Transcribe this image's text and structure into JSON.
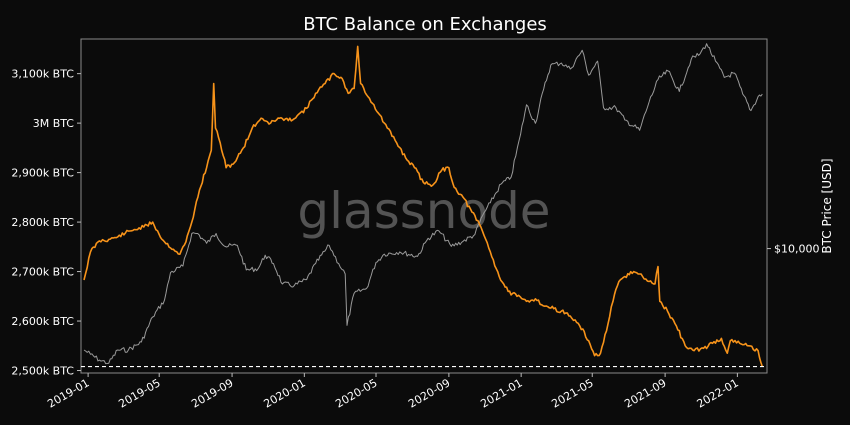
{
  "chart_data": {
    "type": "line",
    "title": "BTC Balance on Exchanges",
    "watermark": "glassnode",
    "ylabel_right": "BTC Price [USD]",
    "x_range": [
      "2018-12-20",
      "2022-02-20"
    ],
    "y_left_range": [
      2495,
      3170
    ],
    "y_right_scale": "log",
    "y_right_range": [
      3150,
      70000
    ],
    "x_ticks": [
      {
        "date": "2019-01-01",
        "label": "2019-01"
      },
      {
        "date": "2019-05-01",
        "label": "2019-05"
      },
      {
        "date": "2019-09-01",
        "label": "2019-09"
      },
      {
        "date": "2020-01-01",
        "label": "2020-01"
      },
      {
        "date": "2020-05-01",
        "label": "2020-05"
      },
      {
        "date": "2020-09-01",
        "label": "2020-09"
      },
      {
        "date": "2021-01-01",
        "label": "2021-01"
      },
      {
        "date": "2021-05-01",
        "label": "2021-05"
      },
      {
        "date": "2021-09-01",
        "label": "2021-09"
      },
      {
        "date": "2022-01-01",
        "label": "2022-01"
      }
    ],
    "y_left_ticks": [
      {
        "value": 2500,
        "label": "2,500k BTC"
      },
      {
        "value": 2600,
        "label": "2,600k BTC"
      },
      {
        "value": 2700,
        "label": "2,700k BTC"
      },
      {
        "value": 2800,
        "label": "2,800k BTC"
      },
      {
        "value": 2900,
        "label": "2,900k BTC"
      },
      {
        "value": 3000,
        "label": "3M BTC"
      },
      {
        "value": 3100,
        "label": "3,100k BTC"
      }
    ],
    "y_right_ticks": [
      {
        "value": 10000,
        "label": "$10,000"
      }
    ],
    "reference_line": {
      "value": 2508,
      "style": "dashed",
      "color": "#ffffff"
    },
    "grid": false,
    "series": [
      {
        "color": "#f7931a",
        "axis": "left",
        "unit": "k BTC",
        "points": [
          [
            "2018-12-25",
            2683
          ],
          [
            "2019-01-05",
            2740
          ],
          [
            "2019-01-20",
            2762
          ],
          [
            "2019-02-05",
            2765
          ],
          [
            "2019-02-20",
            2770
          ],
          [
            "2019-03-05",
            2778
          ],
          [
            "2019-03-20",
            2785
          ],
          [
            "2019-04-05",
            2790
          ],
          [
            "2019-04-20",
            2800
          ],
          [
            "2019-05-01",
            2775
          ],
          [
            "2019-05-10",
            2760
          ],
          [
            "2019-05-25",
            2745
          ],
          [
            "2019-06-05",
            2735
          ],
          [
            "2019-06-15",
            2760
          ],
          [
            "2019-06-25",
            2800
          ],
          [
            "2019-07-08",
            2865
          ],
          [
            "2019-07-20",
            2910
          ],
          [
            "2019-07-28",
            2945
          ],
          [
            "2019-08-01",
            3080
          ],
          [
            "2019-08-04",
            2990
          ],
          [
            "2019-08-12",
            2960
          ],
          [
            "2019-08-22",
            2910
          ],
          [
            "2019-09-05",
            2920
          ],
          [
            "2019-09-20",
            2950
          ],
          [
            "2019-10-05",
            2990
          ],
          [
            "2019-10-20",
            3010
          ],
          [
            "2019-11-05",
            3000
          ],
          [
            "2019-11-20",
            3010
          ],
          [
            "2019-12-05",
            3005
          ],
          [
            "2019-12-20",
            3015
          ],
          [
            "2020-01-05",
            3030
          ],
          [
            "2020-01-20",
            3060
          ],
          [
            "2020-02-05",
            3080
          ],
          [
            "2020-02-20",
            3100
          ],
          [
            "2020-03-05",
            3090
          ],
          [
            "2020-03-15",
            3060
          ],
          [
            "2020-03-25",
            3070
          ],
          [
            "2020-03-31",
            3155
          ],
          [
            "2020-04-05",
            3080
          ],
          [
            "2020-04-20",
            3050
          ],
          [
            "2020-05-05",
            3020
          ],
          [
            "2020-05-20",
            2990
          ],
          [
            "2020-06-05",
            2960
          ],
          [
            "2020-06-20",
            2930
          ],
          [
            "2020-07-05",
            2910
          ],
          [
            "2020-07-20",
            2880
          ],
          [
            "2020-08-05",
            2875
          ],
          [
            "2020-08-20",
            2905
          ],
          [
            "2020-09-01",
            2910
          ],
          [
            "2020-09-10",
            2870
          ],
          [
            "2020-09-25",
            2850
          ],
          [
            "2020-10-10",
            2820
          ],
          [
            "2020-10-25",
            2790
          ],
          [
            "2020-11-10",
            2740
          ],
          [
            "2020-11-25",
            2690
          ],
          [
            "2020-12-10",
            2660
          ],
          [
            "2020-12-25",
            2650
          ],
          [
            "2021-01-10",
            2640
          ],
          [
            "2021-01-25",
            2645
          ],
          [
            "2021-02-10",
            2630
          ],
          [
            "2021-02-25",
            2625
          ],
          [
            "2021-03-10",
            2620
          ],
          [
            "2021-03-25",
            2610
          ],
          [
            "2021-04-10",
            2590
          ],
          [
            "2021-04-25",
            2560
          ],
          [
            "2021-05-05",
            2530
          ],
          [
            "2021-05-15",
            2535
          ],
          [
            "2021-05-25",
            2580
          ],
          [
            "2021-06-05",
            2640
          ],
          [
            "2021-06-15",
            2680
          ],
          [
            "2021-06-25",
            2690
          ],
          [
            "2021-07-10",
            2700
          ],
          [
            "2021-07-25",
            2690
          ],
          [
            "2021-08-05",
            2680
          ],
          [
            "2021-08-15",
            2675
          ],
          [
            "2021-08-20",
            2710
          ],
          [
            "2021-08-23",
            2640
          ],
          [
            "2021-09-05",
            2620
          ],
          [
            "2021-09-20",
            2590
          ],
          [
            "2021-10-05",
            2550
          ],
          [
            "2021-10-20",
            2540
          ],
          [
            "2021-11-05",
            2545
          ],
          [
            "2021-11-20",
            2555
          ],
          [
            "2021-12-05",
            2565
          ],
          [
            "2021-12-15",
            2535
          ],
          [
            "2021-12-20",
            2560
          ],
          [
            "2022-01-05",
            2555
          ],
          [
            "2022-01-20",
            2550
          ],
          [
            "2022-02-05",
            2540
          ],
          [
            "2022-02-12",
            2508
          ]
        ]
      },
      {
        "color": "#9a9a9a",
        "axis": "right",
        "unit": "USD",
        "points": [
          [
            "2018-12-25",
            3900
          ],
          [
            "2019-01-05",
            3750
          ],
          [
            "2019-01-20",
            3550
          ],
          [
            "2019-02-05",
            3450
          ],
          [
            "2019-02-20",
            3900
          ],
          [
            "2019-03-10",
            3900
          ],
          [
            "2019-04-01",
            4200
          ],
          [
            "2019-04-20",
            5300
          ],
          [
            "2019-05-10",
            6200
          ],
          [
            "2019-05-20",
            8000
          ],
          [
            "2019-06-10",
            8500
          ],
          [
            "2019-06-25",
            11500
          ],
          [
            "2019-07-05",
            11500
          ],
          [
            "2019-07-20",
            10500
          ],
          [
            "2019-08-05",
            11500
          ],
          [
            "2019-08-20",
            10200
          ],
          [
            "2019-09-10",
            10300
          ],
          [
            "2019-09-25",
            8200
          ],
          [
            "2019-10-15",
            8300
          ],
          [
            "2019-10-27",
            9400
          ],
          [
            "2019-11-10",
            8700
          ],
          [
            "2019-11-25",
            7200
          ],
          [
            "2019-12-15",
            7100
          ],
          [
            "2020-01-05",
            7500
          ],
          [
            "2020-01-20",
            8700
          ],
          [
            "2020-02-12",
            10300
          ],
          [
            "2020-02-28",
            8700
          ],
          [
            "2020-03-10",
            7900
          ],
          [
            "2020-03-13",
            4900
          ],
          [
            "2020-03-25",
            6600
          ],
          [
            "2020-04-15",
            6900
          ],
          [
            "2020-05-01",
            8800
          ],
          [
            "2020-05-15",
            9500
          ],
          [
            "2020-06-10",
            9700
          ],
          [
            "2020-07-10",
            9300
          ],
          [
            "2020-07-28",
            11000
          ],
          [
            "2020-08-15",
            11800
          ],
          [
            "2020-09-05",
            10200
          ],
          [
            "2020-09-25",
            10700
          ],
          [
            "2020-10-15",
            11400
          ],
          [
            "2020-10-28",
            13600
          ],
          [
            "2020-11-10",
            15300
          ],
          [
            "2020-11-28",
            18200
          ],
          [
            "2020-12-15",
            19400
          ],
          [
            "2020-12-31",
            28900
          ],
          [
            "2021-01-10",
            38000
          ],
          [
            "2021-01-25",
            32000
          ],
          [
            "2021-02-08",
            44000
          ],
          [
            "2021-02-20",
            55000
          ],
          [
            "2021-03-10",
            56000
          ],
          [
            "2021-03-25",
            53000
          ],
          [
            "2021-04-14",
            63000
          ],
          [
            "2021-04-25",
            50000
          ],
          [
            "2021-05-10",
            57000
          ],
          [
            "2021-05-20",
            37000
          ],
          [
            "2021-06-10",
            37000
          ],
          [
            "2021-06-25",
            33000
          ],
          [
            "2021-07-20",
            30000
          ],
          [
            "2021-08-05",
            39000
          ],
          [
            "2021-08-20",
            48000
          ],
          [
            "2021-09-06",
            52000
          ],
          [
            "2021-09-25",
            43000
          ],
          [
            "2021-10-15",
            58000
          ],
          [
            "2021-10-30",
            61000
          ],
          [
            "2021-11-10",
            67000
          ],
          [
            "2021-11-25",
            57000
          ],
          [
            "2021-12-10",
            49000
          ],
          [
            "2021-12-27",
            51000
          ],
          [
            "2022-01-10",
            42000
          ],
          [
            "2022-01-24",
            36000
          ],
          [
            "2022-02-05",
            41000
          ],
          [
            "2022-02-12",
            42000
          ]
        ]
      }
    ]
  }
}
